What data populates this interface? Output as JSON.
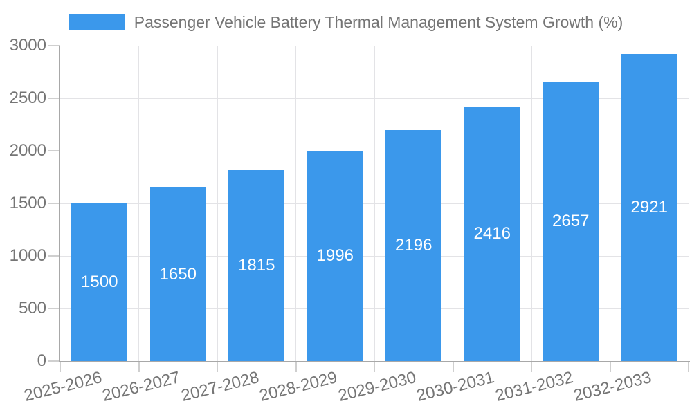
{
  "chart_data": {
    "type": "bar",
    "title": "Passenger Vehicle Battery Thermal Management System Growth (%)",
    "categories": [
      "2025-2026",
      "2026-2027",
      "2027-2028",
      "2028-2029",
      "2029-2030",
      "2030-2031",
      "2031-2032",
      "2032-2033"
    ],
    "series": [
      {
        "name": "Passenger Vehicle Battery Thermal Management System Growth (%)",
        "values": [
          1500,
          1650,
          1815,
          1996,
          2196,
          2416,
          2657,
          2921
        ]
      }
    ],
    "xlabel": "",
    "ylabel": "",
    "ylim": [
      0,
      3000
    ],
    "yticks": [
      0,
      500,
      1000,
      1500,
      2000,
      2500,
      3000
    ],
    "grid": true,
    "legend_position": "top-center",
    "value_labels": "inside-center",
    "colors": {
      "bar": "#3B98EB",
      "bar_value_label": "#FFFFFF",
      "axis_text": "#757575",
      "title_text": "#757575",
      "axis_line": "#A8A8A8",
      "gridline": "#E3E3E6",
      "tick": "#CFCFCF",
      "background": "#FFFFFF"
    }
  }
}
